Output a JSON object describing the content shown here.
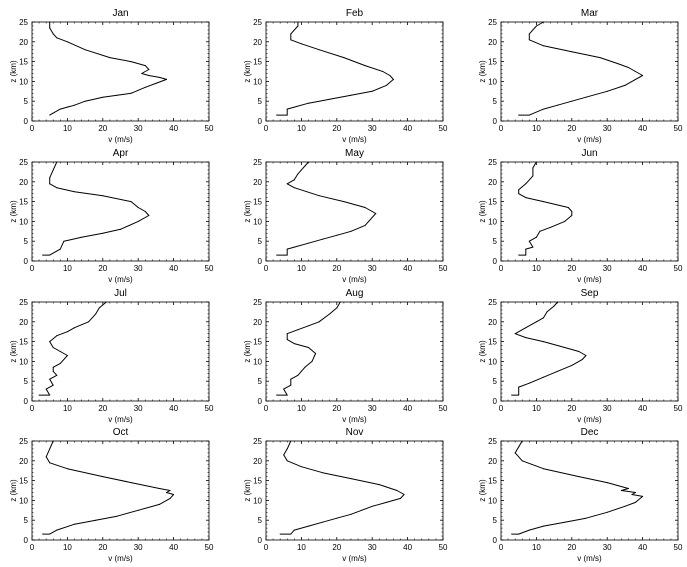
{
  "chart_data": [
    {
      "type": "line",
      "title": "Jan",
      "xlabel": "v (m/s)",
      "ylabel": "z (km)",
      "xlim": [
        0,
        50
      ],
      "ylim": [
        0,
        25
      ],
      "xticks": [
        "0",
        "10",
        "20",
        "30",
        "40",
        "50"
      ],
      "yticks": [
        "0",
        "5",
        "10",
        "15",
        "20",
        "25"
      ],
      "series": [
        {
          "x": [
            5,
            6,
            8,
            10,
            12,
            15,
            20,
            24,
            28,
            32,
            35,
            38,
            36,
            33,
            31,
            33,
            32,
            28,
            22,
            15,
            10,
            7,
            6,
            5,
            5
          ],
          "y": [
            1.5,
            2,
            3,
            3.5,
            4,
            5,
            6,
            6.5,
            7,
            8.5,
            9.5,
            10.5,
            11,
            11.5,
            12,
            13,
            14,
            15,
            16,
            18,
            20,
            21,
            22,
            23.5,
            25
          ]
        }
      ]
    },
    {
      "type": "line",
      "title": "Feb",
      "xlabel": "v (m/s)",
      "ylabel": "z (km)",
      "xlim": [
        0,
        50
      ],
      "ylim": [
        0,
        25
      ],
      "xticks": [
        "0",
        "10",
        "20",
        "30",
        "40",
        "50"
      ],
      "yticks": [
        "0",
        "5",
        "10",
        "15",
        "20",
        "25"
      ],
      "series": [
        {
          "x": [
            3,
            6,
            6,
            8,
            12,
            18,
            24,
            30,
            34,
            36,
            35,
            33,
            28,
            22,
            15,
            10,
            7,
            7,
            9,
            9
          ],
          "y": [
            1.5,
            1.5,
            3,
            3.5,
            4.5,
            5.5,
            6.5,
            7.5,
            9,
            10.5,
            11.5,
            12.5,
            14,
            16,
            18,
            19.5,
            20.5,
            22,
            24,
            25
          ]
        }
      ]
    },
    {
      "type": "line",
      "title": "Mar",
      "xlabel": "v (m/s)",
      "ylabel": "z (km)",
      "xlim": [
        0,
        50
      ],
      "ylim": [
        0,
        25
      ],
      "xticks": [
        "0",
        "10",
        "20",
        "30",
        "40",
        "50"
      ],
      "yticks": [
        "0",
        "5",
        "10",
        "15",
        "20",
        "25"
      ],
      "series": [
        {
          "x": [
            5,
            8,
            12,
            16,
            20,
            24,
            30,
            35,
            38,
            40,
            38,
            36,
            33,
            28,
            20,
            12,
            8,
            8,
            10,
            12
          ],
          "y": [
            1.5,
            1.5,
            3,
            4,
            5,
            6,
            7.5,
            9,
            10.5,
            11.5,
            12.5,
            13.5,
            14.5,
            16,
            17.5,
            19,
            20.5,
            22,
            24,
            25
          ]
        }
      ]
    },
    {
      "type": "line",
      "title": "Apr",
      "xlabel": "v (m/s)",
      "ylabel": "z (km)",
      "xlim": [
        0,
        50
      ],
      "ylim": [
        0,
        25
      ],
      "xticks": [
        "0",
        "10",
        "20",
        "30",
        "40",
        "50"
      ],
      "yticks": [
        "0",
        "5",
        "10",
        "15",
        "20",
        "25"
      ],
      "series": [
        {
          "x": [
            3,
            5,
            8,
            9,
            14,
            20,
            25,
            30,
            33,
            32,
            30,
            28,
            20,
            12,
            7,
            5,
            5,
            6,
            7
          ],
          "y": [
            1.5,
            1.5,
            3,
            5,
            6,
            7,
            8,
            10,
            11.5,
            12.5,
            13.5,
            15,
            16.5,
            17.5,
            18.5,
            19.5,
            21,
            23,
            25
          ]
        }
      ]
    },
    {
      "type": "line",
      "title": "May",
      "xlabel": "v (m/s)",
      "ylabel": "z (km)",
      "xlim": [
        0,
        50
      ],
      "ylim": [
        0,
        25
      ],
      "xticks": [
        "0",
        "10",
        "20",
        "30",
        "40",
        "50"
      ],
      "yticks": [
        "0",
        "5",
        "10",
        "15",
        "20",
        "25"
      ],
      "series": [
        {
          "x": [
            3,
            6,
            6,
            8,
            12,
            16,
            20,
            24,
            28,
            31,
            30,
            28,
            22,
            15,
            8,
            6,
            8,
            9,
            10,
            11,
            12
          ],
          "y": [
            1.5,
            1.5,
            3,
            3.5,
            4.5,
            5.5,
            6.5,
            7.5,
            9,
            12,
            12.5,
            13.5,
            15,
            16.5,
            18.5,
            19.5,
            20.5,
            22,
            23,
            24,
            25
          ]
        }
      ]
    },
    {
      "type": "line",
      "title": "Jun",
      "xlabel": "v (m/s)",
      "ylabel": "z (km)",
      "xlim": [
        0,
        50
      ],
      "ylim": [
        0,
        25
      ],
      "xticks": [
        "0",
        "10",
        "20",
        "30",
        "40",
        "50"
      ],
      "yticks": [
        "0",
        "5",
        "10",
        "15",
        "20",
        "25"
      ],
      "series": [
        {
          "x": [
            5,
            7,
            7,
            9,
            8,
            10,
            11,
            14,
            18,
            20,
            20,
            19,
            12,
            7,
            5,
            5,
            7,
            9,
            9,
            10
          ],
          "y": [
            1.5,
            1.5,
            3,
            3.5,
            5,
            6,
            7.5,
            8.5,
            10,
            11.5,
            12.5,
            13.5,
            15,
            16,
            17,
            18,
            19.5,
            21.5,
            23.5,
            25
          ]
        }
      ]
    },
    {
      "type": "line",
      "title": "Jul",
      "xlabel": "v (m/s)",
      "ylabel": "z (km)",
      "xlim": [
        0,
        50
      ],
      "ylim": [
        0,
        25
      ],
      "xticks": [
        "0",
        "10",
        "20",
        "30",
        "40",
        "50"
      ],
      "yticks": [
        "0",
        "5",
        "10",
        "15",
        "20",
        "25"
      ],
      "series": [
        {
          "x": [
            2,
            5,
            4,
            6,
            5,
            7,
            6,
            6,
            8,
            10,
            8,
            6,
            5,
            7,
            10,
            12,
            16,
            18,
            19,
            21
          ],
          "y": [
            1.5,
            1.5,
            3,
            4,
            5.5,
            6.5,
            7.5,
            8.5,
            9.5,
            11.5,
            12.5,
            13.5,
            15,
            16.5,
            17.5,
            18.5,
            20,
            22,
            23.5,
            25
          ]
        }
      ]
    },
    {
      "type": "line",
      "title": "Aug",
      "xlabel": "v (m/s)",
      "ylabel": "z (km)",
      "xlim": [
        0,
        50
      ],
      "ylim": [
        0,
        25
      ],
      "xticks": [
        "0",
        "10",
        "20",
        "30",
        "40",
        "50"
      ],
      "yticks": [
        "0",
        "5",
        "10",
        "15",
        "20",
        "25"
      ],
      "series": [
        {
          "x": [
            3,
            6,
            5,
            7,
            7,
            9,
            10,
            11,
            13,
            14,
            12,
            8,
            6,
            6,
            9,
            12,
            15,
            18,
            20,
            21
          ],
          "y": [
            1.5,
            1.5,
            3,
            4,
            5.5,
            6.5,
            7.5,
            8.5,
            10,
            12,
            13.5,
            14.5,
            15.5,
            17,
            18,
            19,
            20,
            22,
            23.5,
            25
          ]
        }
      ]
    },
    {
      "type": "line",
      "title": "Sep",
      "xlabel": "v (m/s)",
      "ylabel": "z (km)",
      "xlim": [
        0,
        50
      ],
      "ylim": [
        0,
        25
      ],
      "xticks": [
        "0",
        "10",
        "20",
        "30",
        "40",
        "50"
      ],
      "yticks": [
        "0",
        "5",
        "10",
        "15",
        "20",
        "25"
      ],
      "series": [
        {
          "x": [
            3,
            5,
            5,
            8,
            12,
            16,
            20,
            23,
            24,
            22,
            18,
            12,
            7,
            4,
            7,
            10,
            12,
            13,
            15,
            16
          ],
          "y": [
            1.5,
            1.5,
            3.5,
            4.5,
            6,
            7.5,
            9,
            10.5,
            11.5,
            12.5,
            13.5,
            15,
            16,
            17,
            18.5,
            20,
            21,
            22.5,
            24,
            25
          ]
        }
      ]
    },
    {
      "type": "line",
      "title": "Oct",
      "xlabel": "v (m/s)",
      "ylabel": "z (km)",
      "xlim": [
        0,
        50
      ],
      "ylim": [
        0,
        25
      ],
      "xticks": [
        "0",
        "10",
        "20",
        "30",
        "40",
        "50"
      ],
      "yticks": [
        "0",
        "5",
        "10",
        "15",
        "20",
        "25"
      ],
      "series": [
        {
          "x": [
            3,
            5,
            7,
            12,
            18,
            24,
            30,
            36,
            39,
            40,
            38,
            39,
            36,
            28,
            20,
            10,
            5,
            4,
            5,
            6
          ],
          "y": [
            1.5,
            1.5,
            2.5,
            4,
            5,
            6,
            7.5,
            9,
            10.5,
            11.5,
            12,
            12.5,
            13,
            14.5,
            16,
            18,
            19.5,
            21,
            23,
            25
          ]
        }
      ]
    },
    {
      "type": "line",
      "title": "Nov",
      "xlabel": "v (m/s)",
      "ylabel": "z (km)",
      "xlim": [
        0,
        50
      ],
      "ylim": [
        0,
        25
      ],
      "xticks": [
        "0",
        "10",
        "20",
        "30",
        "40",
        "50"
      ],
      "yticks": [
        "0",
        "5",
        "10",
        "15",
        "20",
        "25"
      ],
      "series": [
        {
          "x": [
            4,
            7,
            8,
            12,
            16,
            20,
            24,
            27,
            30,
            34,
            38,
            39,
            37,
            32,
            24,
            16,
            10,
            6,
            5,
            6,
            7
          ],
          "y": [
            1.5,
            1.5,
            2.5,
            3.5,
            4.5,
            5.5,
            6.5,
            7.5,
            8.5,
            9.5,
            10.5,
            11.5,
            12.5,
            14,
            15.5,
            17,
            18.5,
            20,
            21.5,
            23,
            25
          ]
        }
      ]
    },
    {
      "type": "line",
      "title": "Dec",
      "xlabel": "v (m/s)",
      "ylabel": "z (km)",
      "xlim": [
        0,
        50
      ],
      "ylim": [
        0,
        25
      ],
      "xticks": [
        "0",
        "10",
        "20",
        "30",
        "40",
        "50"
      ],
      "yticks": [
        "0",
        "5",
        "10",
        "15",
        "20",
        "25"
      ],
      "series": [
        {
          "x": [
            3,
            5,
            8,
            12,
            18,
            24,
            30,
            35,
            38,
            40,
            37,
            38,
            34,
            36,
            30,
            22,
            12,
            6,
            4,
            5,
            6
          ],
          "y": [
            1.5,
            1.5,
            2.5,
            3.5,
            4.5,
            5.5,
            7,
            8.5,
            9.5,
            11,
            11.5,
            12,
            12.5,
            13,
            14.5,
            16,
            18,
            20,
            22,
            23.5,
            25
          ]
        }
      ]
    }
  ]
}
